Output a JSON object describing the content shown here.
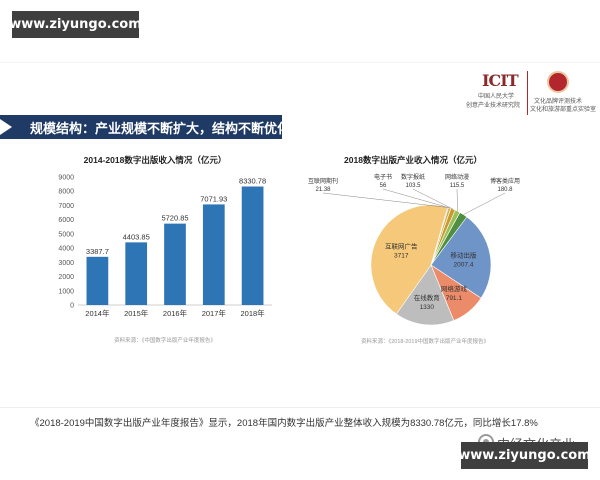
{
  "watermark": {
    "top": "www.ziyungo.com",
    "bottom": "www.ziyungo.com"
  },
  "slide": {
    "title": "规模结构：产业规模不断扩大，结构不断优化",
    "logo_left": {
      "mark": "ICIT",
      "line1": "中国人民大学",
      "line2": "创意产业技术研究院"
    },
    "logo_right": {
      "line1": "文化品牌评测技术",
      "line2": "文化和旅游部重点实验室"
    }
  },
  "bar_chart_source": "资料来源：《中国数字出版产业年度报告》",
  "pie_chart_source": "资料来源：《2018-2019中国数字出版产业年度报告》",
  "caption": "《2018-2019中国数字出版产业年度报告》显示，2018年国内数字出版产业整体收入规模为8330.78亿元，同比增长17.8%",
  "brand": {
    "name": "中经文化产业"
  },
  "chart_data": [
    {
      "type": "bar",
      "title": "2014-2018数字出版收入情况（亿元）",
      "categories": [
        "2014年",
        "2015年",
        "2016年",
        "2017年",
        "2018年"
      ],
      "values": [
        3387.7,
        4403.85,
        5720.85,
        7071.93,
        8330.78
      ],
      "value_labels": [
        "3387.7",
        "4403.85",
        "5720.85",
        "7071.93",
        "8330.78"
      ],
      "ylim": [
        0,
        9000
      ],
      "yticks": [
        0,
        1000,
        2000,
        3000,
        4000,
        5000,
        6000,
        7000,
        8000,
        9000
      ],
      "grid": false,
      "color": "#2e75b6"
    },
    {
      "type": "pie",
      "title": "2018数字出版产业收入情况（亿元）",
      "slices": [
        {
          "label": "互联网广告",
          "value": 3717,
          "color": "#f5c87a"
        },
        {
          "label": "在线教育",
          "value": 1330,
          "color": "#bdbdbd"
        },
        {
          "label": "网络游戏",
          "value": 791.1,
          "color": "#ec8b6a"
        },
        {
          "label": "移动出版",
          "value": 2007.4,
          "color": "#6f94c8"
        },
        {
          "label": "博客类应用",
          "value": 180.8,
          "color": "#4f8f3f"
        },
        {
          "label": "网络动漫",
          "value": 115.5,
          "color": "#9cbf5a"
        },
        {
          "label": "数字报纸",
          "value": 103.5,
          "color": "#c79a2e"
        },
        {
          "label": "电子书",
          "value": 56,
          "color": "#d9b04a"
        },
        {
          "label": "互联网期刊",
          "value": 21.38,
          "color": "#7aa6d8"
        }
      ]
    }
  ]
}
